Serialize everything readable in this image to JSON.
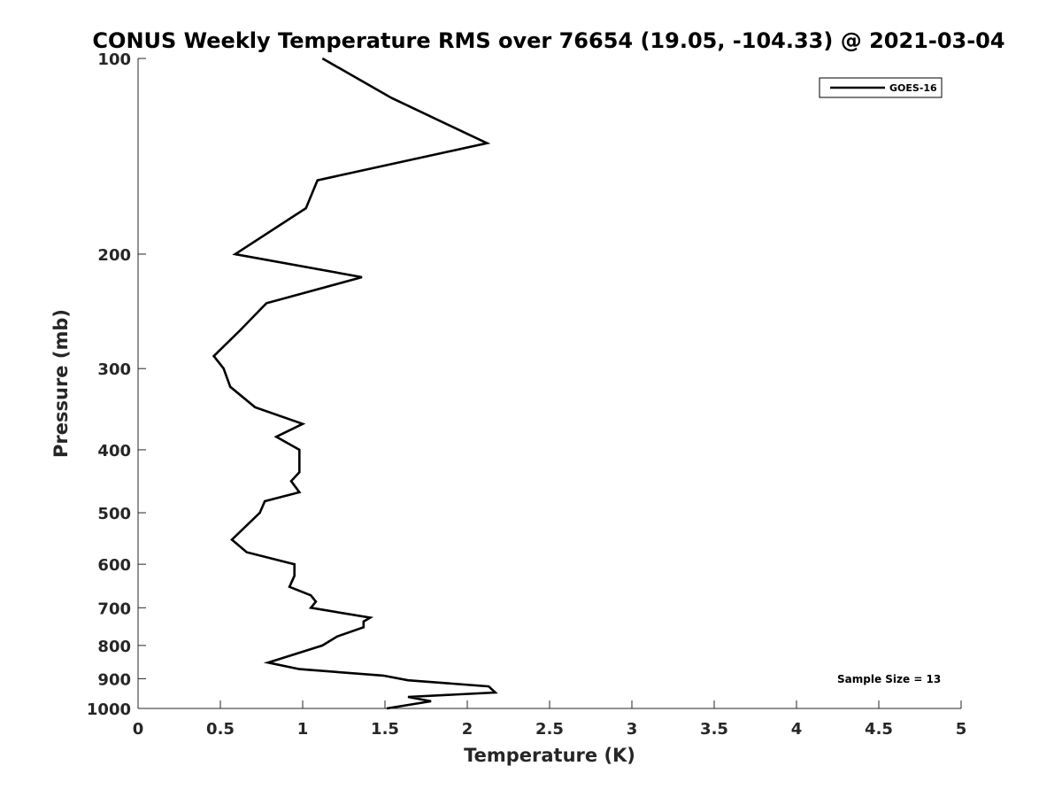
{
  "chart_data": {
    "type": "line",
    "title": "CONUS Weekly Temperature RMS over 76654 (19.05, -104.33) @ 2021-03-04",
    "xlabel": "Temperature (K)",
    "ylabel": "Pressure (mb)",
    "xlim": [
      0,
      5
    ],
    "ylim": [
      100,
      1000
    ],
    "y_scale": "log",
    "y_reversed": true,
    "x_ticks": [
      "0",
      "0.5",
      "1",
      "1.5",
      "2",
      "2.5",
      "3",
      "3.5",
      "4",
      "4.5",
      "5"
    ],
    "x_tick_values": [
      0,
      0.5,
      1,
      1.5,
      2,
      2.5,
      3,
      3.5,
      4,
      4.5,
      5
    ],
    "y_ticks": [
      "100",
      "200",
      "300",
      "400",
      "500",
      "600",
      "700",
      "800",
      "900",
      "1000"
    ],
    "y_tick_values": [
      100,
      200,
      300,
      400,
      500,
      600,
      700,
      800,
      900,
      1000
    ],
    "grid": false,
    "legend_position": "top-right",
    "annotation": "Sample Size = 13",
    "series": [
      {
        "name": "GOES-16",
        "color": "#000000",
        "points": [
          [
            1.12,
            100
          ],
          [
            1.54,
            115
          ],
          [
            2.12,
            135
          ],
          [
            1.09,
            154
          ],
          [
            1.02,
            170
          ],
          [
            0.59,
            200
          ],
          [
            1.36,
            217
          ],
          [
            0.78,
            238
          ],
          [
            0.62,
            262
          ],
          [
            0.46,
            287
          ],
          [
            0.52,
            300
          ],
          [
            0.56,
            320
          ],
          [
            0.71,
            344
          ],
          [
            1.0,
            365
          ],
          [
            0.84,
            382
          ],
          [
            0.98,
            400
          ],
          [
            0.98,
            433
          ],
          [
            0.93,
            447
          ],
          [
            0.98,
            465
          ],
          [
            0.77,
            480
          ],
          [
            0.74,
            500
          ],
          [
            0.57,
            550
          ],
          [
            0.66,
            575
          ],
          [
            0.95,
            600
          ],
          [
            0.95,
            625
          ],
          [
            0.92,
            650
          ],
          [
            1.05,
            670
          ],
          [
            1.08,
            685
          ],
          [
            1.05,
            700
          ],
          [
            1.41,
            725
          ],
          [
            1.37,
            735
          ],
          [
            1.37,
            750
          ],
          [
            1.21,
            775
          ],
          [
            1.12,
            800
          ],
          [
            0.79,
            850
          ],
          [
            0.98,
            870
          ],
          [
            1.49,
            890
          ],
          [
            1.64,
            905
          ],
          [
            2.13,
            925
          ],
          [
            2.17,
            945
          ],
          [
            1.64,
            960
          ],
          [
            1.78,
            975
          ],
          [
            1.51,
            1000
          ]
        ]
      }
    ]
  }
}
